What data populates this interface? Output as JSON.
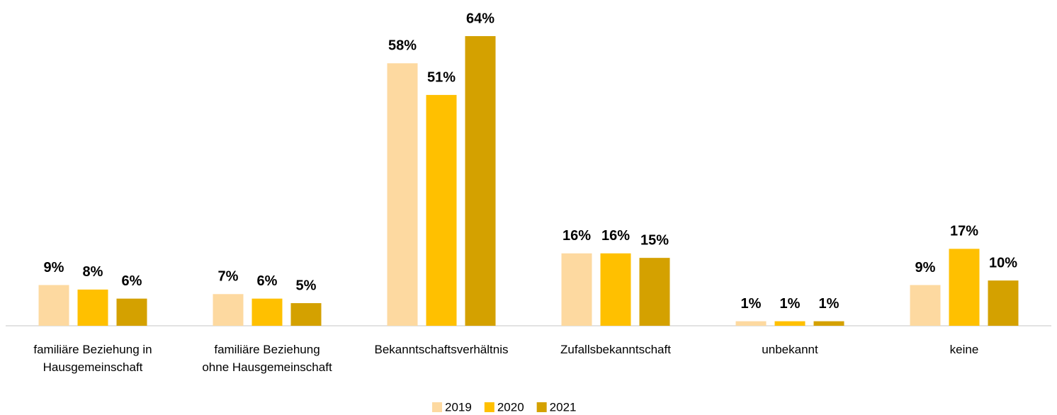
{
  "chart_data": {
    "type": "bar",
    "categories": [
      "familiäre Beziehung in\nHausgemeinschaft",
      "familiäre Beziehung\nohne Hausgemeinschaft",
      "Bekanntschaftsverhältnis",
      "Zufallsbekanntschaft",
      "unbekannt",
      "keine"
    ],
    "series": [
      {
        "name": "2019",
        "color": "#fdd9a0",
        "values": [
          9,
          7,
          58,
          16,
          1,
          9
        ],
        "value_labels": [
          "9%",
          "7%",
          "58%",
          "16%",
          "1%",
          "9%"
        ]
      },
      {
        "name": "2020",
        "color": "#ffc000",
        "values": [
          8,
          6,
          51,
          16,
          1,
          17
        ],
        "value_labels": [
          "8%",
          "6%",
          "51%",
          "16%",
          "1%",
          "17%"
        ]
      },
      {
        "name": "2021",
        "color": "#d4a100",
        "values": [
          6,
          5,
          64,
          15,
          1,
          10
        ],
        "value_labels": [
          "6%",
          "5%",
          "64%",
          "15%",
          "1%",
          "10%"
        ]
      }
    ],
    "legend": "bottom"
  }
}
